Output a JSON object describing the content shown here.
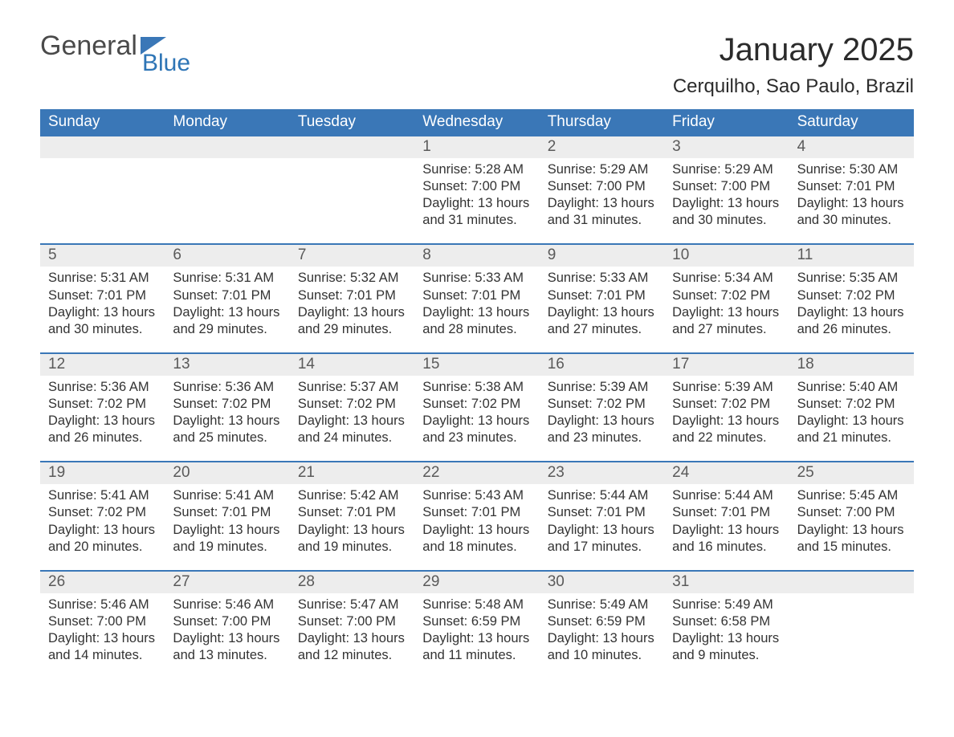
{
  "logo": {
    "general": "General",
    "blue": "Blue",
    "flag_color": "#3a77b7"
  },
  "title": "January 2025",
  "location": "Cerquilho, Sao Paulo, Brazil",
  "colors": {
    "header_bg": "#3a77b7",
    "header_text": "#ffffff",
    "daynum_bg": "#ededed",
    "daynum_text": "#5a5a5a",
    "body_text": "#333333",
    "week_divider": "#3a77b7",
    "page_bg": "#ffffff"
  },
  "weekdays": [
    "Sunday",
    "Monday",
    "Tuesday",
    "Wednesday",
    "Thursday",
    "Friday",
    "Saturday"
  ],
  "weeks": [
    [
      {
        "n": "",
        "sunrise": "",
        "sunset": "",
        "daylight1": "",
        "daylight2": ""
      },
      {
        "n": "",
        "sunrise": "",
        "sunset": "",
        "daylight1": "",
        "daylight2": ""
      },
      {
        "n": "",
        "sunrise": "",
        "sunset": "",
        "daylight1": "",
        "daylight2": ""
      },
      {
        "n": "1",
        "sunrise": "Sunrise: 5:28 AM",
        "sunset": "Sunset: 7:00 PM",
        "daylight1": "Daylight: 13 hours",
        "daylight2": "and 31 minutes."
      },
      {
        "n": "2",
        "sunrise": "Sunrise: 5:29 AM",
        "sunset": "Sunset: 7:00 PM",
        "daylight1": "Daylight: 13 hours",
        "daylight2": "and 31 minutes."
      },
      {
        "n": "3",
        "sunrise": "Sunrise: 5:29 AM",
        "sunset": "Sunset: 7:00 PM",
        "daylight1": "Daylight: 13 hours",
        "daylight2": "and 30 minutes."
      },
      {
        "n": "4",
        "sunrise": "Sunrise: 5:30 AM",
        "sunset": "Sunset: 7:01 PM",
        "daylight1": "Daylight: 13 hours",
        "daylight2": "and 30 minutes."
      }
    ],
    [
      {
        "n": "5",
        "sunrise": "Sunrise: 5:31 AM",
        "sunset": "Sunset: 7:01 PM",
        "daylight1": "Daylight: 13 hours",
        "daylight2": "and 30 minutes."
      },
      {
        "n": "6",
        "sunrise": "Sunrise: 5:31 AM",
        "sunset": "Sunset: 7:01 PM",
        "daylight1": "Daylight: 13 hours",
        "daylight2": "and 29 minutes."
      },
      {
        "n": "7",
        "sunrise": "Sunrise: 5:32 AM",
        "sunset": "Sunset: 7:01 PM",
        "daylight1": "Daylight: 13 hours",
        "daylight2": "and 29 minutes."
      },
      {
        "n": "8",
        "sunrise": "Sunrise: 5:33 AM",
        "sunset": "Sunset: 7:01 PM",
        "daylight1": "Daylight: 13 hours",
        "daylight2": "and 28 minutes."
      },
      {
        "n": "9",
        "sunrise": "Sunrise: 5:33 AM",
        "sunset": "Sunset: 7:01 PM",
        "daylight1": "Daylight: 13 hours",
        "daylight2": "and 27 minutes."
      },
      {
        "n": "10",
        "sunrise": "Sunrise: 5:34 AM",
        "sunset": "Sunset: 7:02 PM",
        "daylight1": "Daylight: 13 hours",
        "daylight2": "and 27 minutes."
      },
      {
        "n": "11",
        "sunrise": "Sunrise: 5:35 AM",
        "sunset": "Sunset: 7:02 PM",
        "daylight1": "Daylight: 13 hours",
        "daylight2": "and 26 minutes."
      }
    ],
    [
      {
        "n": "12",
        "sunrise": "Sunrise: 5:36 AM",
        "sunset": "Sunset: 7:02 PM",
        "daylight1": "Daylight: 13 hours",
        "daylight2": "and 26 minutes."
      },
      {
        "n": "13",
        "sunrise": "Sunrise: 5:36 AM",
        "sunset": "Sunset: 7:02 PM",
        "daylight1": "Daylight: 13 hours",
        "daylight2": "and 25 minutes."
      },
      {
        "n": "14",
        "sunrise": "Sunrise: 5:37 AM",
        "sunset": "Sunset: 7:02 PM",
        "daylight1": "Daylight: 13 hours",
        "daylight2": "and 24 minutes."
      },
      {
        "n": "15",
        "sunrise": "Sunrise: 5:38 AM",
        "sunset": "Sunset: 7:02 PM",
        "daylight1": "Daylight: 13 hours",
        "daylight2": "and 23 minutes."
      },
      {
        "n": "16",
        "sunrise": "Sunrise: 5:39 AM",
        "sunset": "Sunset: 7:02 PM",
        "daylight1": "Daylight: 13 hours",
        "daylight2": "and 23 minutes."
      },
      {
        "n": "17",
        "sunrise": "Sunrise: 5:39 AM",
        "sunset": "Sunset: 7:02 PM",
        "daylight1": "Daylight: 13 hours",
        "daylight2": "and 22 minutes."
      },
      {
        "n": "18",
        "sunrise": "Sunrise: 5:40 AM",
        "sunset": "Sunset: 7:02 PM",
        "daylight1": "Daylight: 13 hours",
        "daylight2": "and 21 minutes."
      }
    ],
    [
      {
        "n": "19",
        "sunrise": "Sunrise: 5:41 AM",
        "sunset": "Sunset: 7:02 PM",
        "daylight1": "Daylight: 13 hours",
        "daylight2": "and 20 minutes."
      },
      {
        "n": "20",
        "sunrise": "Sunrise: 5:41 AM",
        "sunset": "Sunset: 7:01 PM",
        "daylight1": "Daylight: 13 hours",
        "daylight2": "and 19 minutes."
      },
      {
        "n": "21",
        "sunrise": "Sunrise: 5:42 AM",
        "sunset": "Sunset: 7:01 PM",
        "daylight1": "Daylight: 13 hours",
        "daylight2": "and 19 minutes."
      },
      {
        "n": "22",
        "sunrise": "Sunrise: 5:43 AM",
        "sunset": "Sunset: 7:01 PM",
        "daylight1": "Daylight: 13 hours",
        "daylight2": "and 18 minutes."
      },
      {
        "n": "23",
        "sunrise": "Sunrise: 5:44 AM",
        "sunset": "Sunset: 7:01 PM",
        "daylight1": "Daylight: 13 hours",
        "daylight2": "and 17 minutes."
      },
      {
        "n": "24",
        "sunrise": "Sunrise: 5:44 AM",
        "sunset": "Sunset: 7:01 PM",
        "daylight1": "Daylight: 13 hours",
        "daylight2": "and 16 minutes."
      },
      {
        "n": "25",
        "sunrise": "Sunrise: 5:45 AM",
        "sunset": "Sunset: 7:00 PM",
        "daylight1": "Daylight: 13 hours",
        "daylight2": "and 15 minutes."
      }
    ],
    [
      {
        "n": "26",
        "sunrise": "Sunrise: 5:46 AM",
        "sunset": "Sunset: 7:00 PM",
        "daylight1": "Daylight: 13 hours",
        "daylight2": "and 14 minutes."
      },
      {
        "n": "27",
        "sunrise": "Sunrise: 5:46 AM",
        "sunset": "Sunset: 7:00 PM",
        "daylight1": "Daylight: 13 hours",
        "daylight2": "and 13 minutes."
      },
      {
        "n": "28",
        "sunrise": "Sunrise: 5:47 AM",
        "sunset": "Sunset: 7:00 PM",
        "daylight1": "Daylight: 13 hours",
        "daylight2": "and 12 minutes."
      },
      {
        "n": "29",
        "sunrise": "Sunrise: 5:48 AM",
        "sunset": "Sunset: 6:59 PM",
        "daylight1": "Daylight: 13 hours",
        "daylight2": "and 11 minutes."
      },
      {
        "n": "30",
        "sunrise": "Sunrise: 5:49 AM",
        "sunset": "Sunset: 6:59 PM",
        "daylight1": "Daylight: 13 hours",
        "daylight2": "and 10 minutes."
      },
      {
        "n": "31",
        "sunrise": "Sunrise: 5:49 AM",
        "sunset": "Sunset: 6:58 PM",
        "daylight1": "Daylight: 13 hours",
        "daylight2": "and 9 minutes."
      },
      {
        "n": "",
        "sunrise": "",
        "sunset": "",
        "daylight1": "",
        "daylight2": ""
      }
    ]
  ]
}
